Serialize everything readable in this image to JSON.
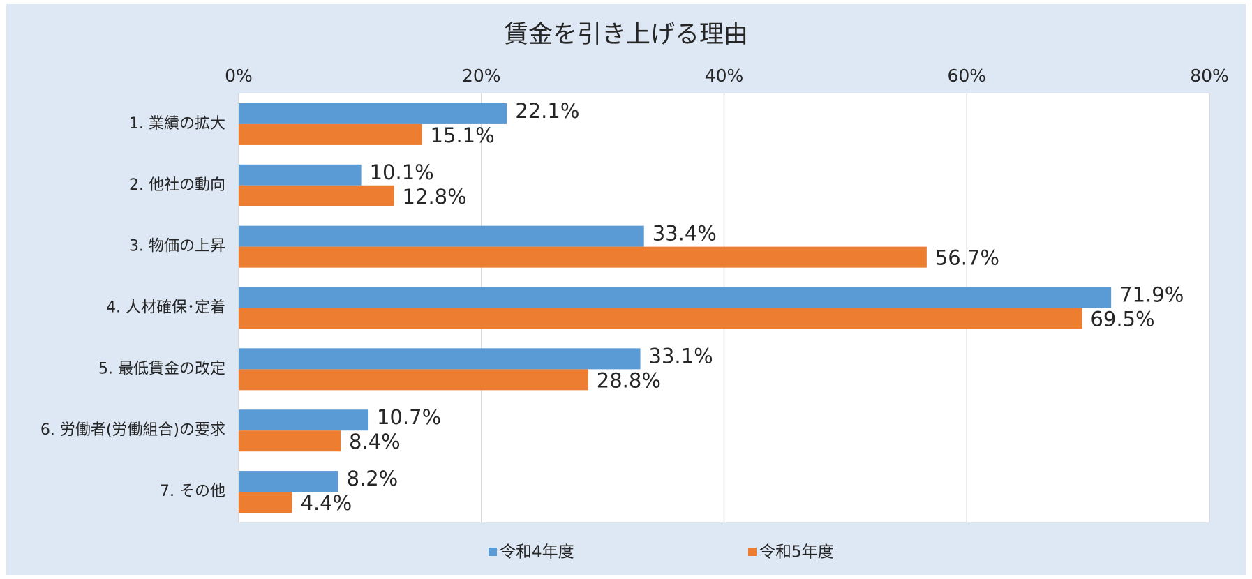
{
  "chart_data": {
    "type": "bar",
    "orientation": "horizontal",
    "title": "賃金を引き上げる理由",
    "categories": [
      "1. 業績の拡大",
      "2. 他社の動向",
      "3. 物価の上昇",
      "4. 人材確保･定着",
      "5. 最低賃金の改定",
      "6. 労働者(労働組合)の要求",
      "7. その他"
    ],
    "series": [
      {
        "name": "令和4年度",
        "color": "#5b9bd5",
        "values": [
          22.1,
          10.1,
          33.4,
          71.9,
          33.1,
          10.7,
          8.2
        ],
        "value_labels": [
          "22.1%",
          "10.1%",
          "33.4%",
          "71.9%",
          "33.1%",
          "10.7%",
          "8.2%"
        ]
      },
      {
        "name": "令和5年度",
        "color": "#ed7d31",
        "values": [
          15.1,
          12.8,
          56.7,
          69.5,
          28.8,
          8.4,
          4.4
        ],
        "value_labels": [
          "15.1%",
          "12.8%",
          "56.7%",
          "69.5%",
          "28.8%",
          "8.4%",
          "4.4%"
        ]
      }
    ],
    "xlim": [
      0,
      80
    ],
    "xticks": [
      {
        "value": 0,
        "label": "0%"
      },
      {
        "value": 20,
        "label": "20%"
      },
      {
        "value": 40,
        "label": "40%"
      },
      {
        "value": 60,
        "label": "60%"
      },
      {
        "value": 80,
        "label": "80%"
      }
    ],
    "grid": true,
    "legend": "bottom"
  }
}
